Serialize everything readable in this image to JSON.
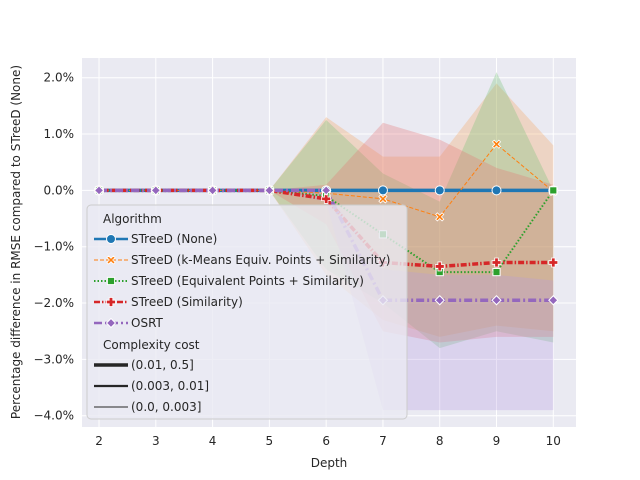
{
  "chart_data": {
    "type": "line",
    "xlabel": "Depth",
    "ylabel": "Percentage difference in RMSE compared to STreeD (None)",
    "x": [
      2,
      3,
      4,
      5,
      6,
      7,
      8,
      9,
      10
    ],
    "xlim": [
      1.7,
      10.4
    ],
    "ylim": [
      -4.2,
      2.35
    ],
    "yticks": [
      2.0,
      1.0,
      0.0,
      -1.0,
      -2.0,
      -3.0,
      -4.0
    ],
    "ytick_labels": [
      "2.0%",
      "1.0%",
      "0.0%",
      "−1.0%",
      "−2.0%",
      "−3.0%",
      "−4.0%"
    ],
    "grid": true,
    "background": "#eaeaf2",
    "legend": {
      "placement": "lower-left",
      "algorithm_title": "Algorithm",
      "cost_title": "Complexity cost",
      "cost_entries": [
        "(0.01, 0.5]",
        "(0.003, 0.01]",
        "(0.0, 0.003]"
      ]
    },
    "bands": [
      {
        "color": "#f5a15b",
        "x": [
          5,
          6,
          7,
          8,
          9,
          10
        ],
        "upper": [
          0.0,
          1.3,
          0.6,
          0.6,
          1.9,
          0.8
        ],
        "lower": [
          0.0,
          -1.5,
          -2.3,
          -2.6,
          -2.4,
          -2.5
        ]
      },
      {
        "color": "#6fbf6f",
        "x": [
          5,
          6,
          7,
          8,
          9,
          10
        ],
        "upper": [
          0.0,
          1.25,
          0.3,
          -0.2,
          2.1,
          0.0
        ],
        "lower": [
          0.0,
          -1.4,
          -2.0,
          -2.8,
          -2.5,
          -2.7
        ]
      },
      {
        "color": "#e57070",
        "x": [
          5,
          6,
          7,
          8,
          9,
          10
        ],
        "upper": [
          0.0,
          0.1,
          1.2,
          0.9,
          0.4,
          0.1
        ],
        "lower": [
          0.0,
          -0.6,
          -2.5,
          -2.7,
          -2.6,
          -2.6
        ]
      },
      {
        "color": "#b79be0",
        "x": [
          5,
          6,
          7,
          8,
          9,
          10
        ],
        "upper": [
          0.0,
          0.0,
          -1.4,
          -1.5,
          -1.5,
          -1.6
        ],
        "lower": [
          0.0,
          -0.2,
          -3.9,
          -3.9,
          -3.9,
          -3.9
        ]
      }
    ],
    "series": [
      {
        "name": "STreeD (None)",
        "color": "#1f77b4",
        "dash": "",
        "marker": "circle",
        "width": 3.5,
        "values": [
          0,
          0,
          0,
          0,
          0,
          0,
          0,
          0,
          0
        ]
      },
      {
        "name": "STreeD (k-Means Equiv. Points + Similarity)",
        "color": "#ff7f0e",
        "dash": "4,2",
        "marker": "x",
        "width": 1,
        "values": [
          0,
          0,
          0,
          0,
          -0.05,
          -0.15,
          -0.47,
          0.82,
          -0.02
        ]
      },
      {
        "name": "STreeD (Equivalent Points + Similarity)",
        "color": "#2ca02c",
        "dash": "1.5,2",
        "marker": "square",
        "width": 2,
        "values": [
          0,
          0,
          0,
          0,
          -0.1,
          -0.78,
          -1.45,
          -1.45,
          0.0
        ]
      },
      {
        "name": "STreeD (Similarity)",
        "color": "#d62728",
        "dash": "6,2,1.5,2",
        "marker": "plus",
        "width": 3.5,
        "values": [
          0,
          0,
          0,
          0,
          -0.15,
          -1.28,
          -1.35,
          -1.28,
          -1.28
        ]
      },
      {
        "name": "OSRT",
        "color": "#9467bd",
        "dash": "8,3,2,3",
        "marker": "diamond",
        "width": 3.5,
        "values": [
          0,
          0,
          0,
          0,
          0,
          -1.95,
          -1.95,
          -1.95,
          -1.95
        ]
      }
    ]
  }
}
